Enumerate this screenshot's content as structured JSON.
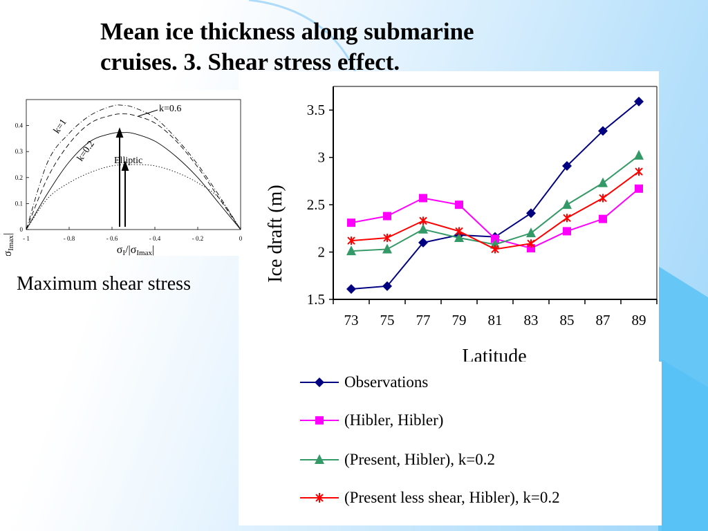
{
  "title": "Mean ice thickness along submarine cruises. 3. Shear stress effect.",
  "caption": "Maximum shear stress",
  "colors": {
    "observations": "#000080",
    "hibler_hibler": "#ff00ff",
    "present_hibler": "#339966",
    "present_less_shear": "#ff0000"
  },
  "chart_data": [
    {
      "type": "line",
      "title": "",
      "xlabel": "Latitude",
      "ylabel": "Ice draft (m)",
      "categories": [
        "73",
        "75",
        "77",
        "79",
        "81",
        "83",
        "85",
        "87",
        "89"
      ],
      "y_ticks": [
        "1.5",
        "2",
        "2.5",
        "3",
        "3.5"
      ],
      "ylim": [
        1.5,
        3.75
      ],
      "grid": false,
      "legend_position": "below",
      "series": [
        {
          "name": "Observations",
          "marker": "diamond",
          "color": "#000080",
          "values": [
            1.61,
            1.64,
            2.1,
            2.18,
            2.16,
            2.41,
            2.91,
            3.28,
            3.59
          ]
        },
        {
          "name": "(Hibler, Hibler)",
          "marker": "square",
          "color": "#ff00ff",
          "values": [
            2.31,
            2.38,
            2.57,
            2.5,
            2.14,
            2.04,
            2.22,
            2.35,
            2.67
          ]
        },
        {
          "name": "(Present, Hibler), k=0.2",
          "marker": "triangle",
          "color": "#339966",
          "values": [
            2.01,
            2.03,
            2.24,
            2.15,
            2.08,
            2.2,
            2.5,
            2.73,
            3.02
          ]
        },
        {
          "name": "(Present less shear, Hibler), k=0.2",
          "marker": "star",
          "color": "#ff0000",
          "values": [
            2.12,
            2.15,
            2.33,
            2.22,
            2.03,
            2.09,
            2.36,
            2.57,
            2.85
          ]
        }
      ]
    },
    {
      "type": "line",
      "title": "",
      "xlabel": "σI/|σImax|",
      "ylabel": "σII/|σImax|",
      "x_ticks": [
        "- 1",
        "- 0.8",
        "- 0.6",
        "- 0.4",
        "- 0.2",
        "0"
      ],
      "y_ticks": [
        "0",
        "0.1",
        "0.2",
        "0.3",
        "0.4"
      ],
      "xlim": [
        -1,
        0
      ],
      "ylim": [
        0,
        0.5
      ],
      "grid": false,
      "annotations": [
        "k=1",
        "k=0.6",
        "k=0.2",
        "Elliptic"
      ],
      "series": [
        {
          "label": "k=1",
          "style": "dash-dot",
          "x": [
            -1,
            -0.9,
            -0.8,
            -0.7,
            -0.6,
            -0.55,
            -0.5,
            -0.4,
            -0.3,
            -0.2,
            -0.1,
            0
          ],
          "y": [
            0,
            0.26,
            0.37,
            0.44,
            0.475,
            0.478,
            0.47,
            0.43,
            0.35,
            0.25,
            0.13,
            0
          ]
        },
        {
          "label": "k=0.6",
          "style": "dashed",
          "x": [
            -1,
            -0.9,
            -0.8,
            -0.7,
            -0.6,
            -0.55,
            -0.5,
            -0.4,
            -0.3,
            -0.2,
            -0.1,
            0
          ],
          "y": [
            0,
            0.2,
            0.33,
            0.41,
            0.44,
            0.445,
            0.44,
            0.41,
            0.34,
            0.24,
            0.12,
            0
          ]
        },
        {
          "label": "k=0.2",
          "style": "solid",
          "x": [
            -1,
            -0.9,
            -0.8,
            -0.7,
            -0.6,
            -0.55,
            -0.5,
            -0.4,
            -0.3,
            -0.2,
            -0.1,
            0
          ],
          "y": [
            0,
            0.14,
            0.26,
            0.34,
            0.37,
            0.373,
            0.37,
            0.34,
            0.28,
            0.2,
            0.1,
            0
          ]
        },
        {
          "label": "Elliptic",
          "style": "dotted",
          "x": [
            -1,
            -0.9,
            -0.8,
            -0.7,
            -0.6,
            -0.5,
            -0.4,
            -0.3,
            -0.2,
            -0.1,
            0
          ],
          "y": [
            0,
            0.12,
            0.18,
            0.22,
            0.245,
            0.25,
            0.245,
            0.22,
            0.18,
            0.12,
            0
          ]
        }
      ]
    }
  ]
}
